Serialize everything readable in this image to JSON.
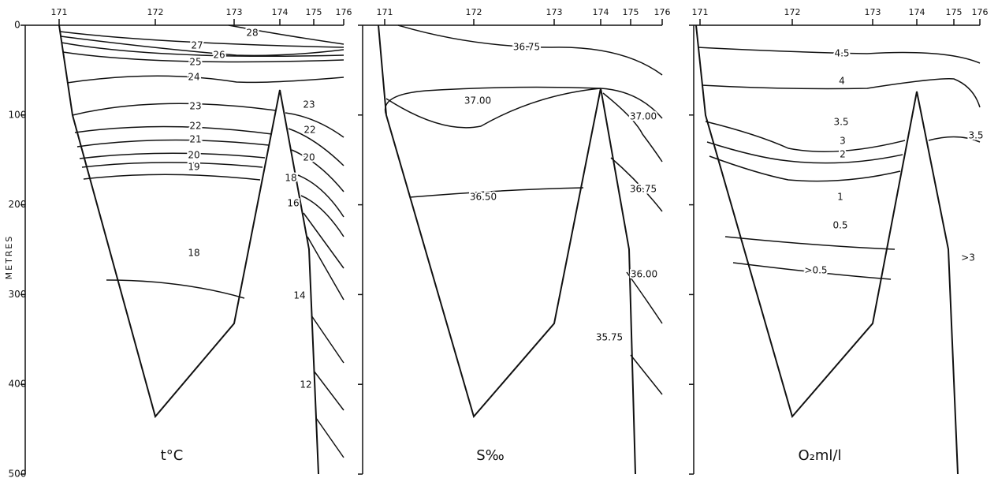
{
  "y_axis": {
    "label": "METRES",
    "ticks": [
      "0",
      "100",
      "200",
      "300",
      "400",
      "500"
    ]
  },
  "panels": [
    {
      "label": "t°C",
      "stations": [
        "171",
        "172",
        "173",
        "174",
        "175",
        "176"
      ],
      "contour_labels": [
        "28",
        "27",
        "26",
        "25",
        "24",
        "23",
        "22",
        "21",
        "20",
        "19",
        "18",
        "23",
        "22",
        "20",
        "18",
        "16",
        "14",
        "12"
      ]
    },
    {
      "label": "S‰",
      "stations": [
        "171",
        "172",
        "173",
        "174",
        "175",
        "176"
      ],
      "contour_labels": [
        "36.75",
        "37.00",
        "37.00",
        "36.75",
        "36.50",
        "36.00",
        "35.75"
      ]
    },
    {
      "label": "O₂ml/l",
      "stations": [
        "171",
        "172",
        "173",
        "174",
        "175",
        "176"
      ],
      "contour_labels": [
        "4.5",
        "4",
        "3.5",
        "3",
        "2",
        "1",
        "0.5",
        ">0.5",
        ">3",
        "3.5"
      ]
    }
  ]
}
